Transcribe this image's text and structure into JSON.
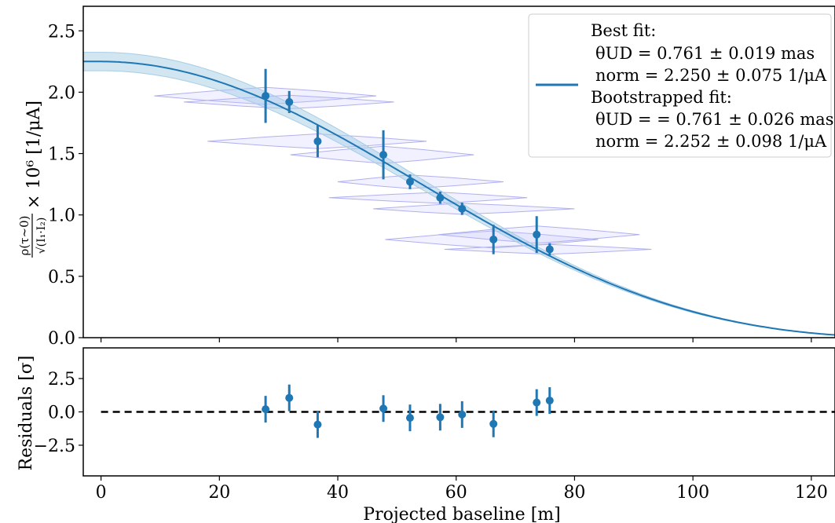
{
  "chart_data": [
    {
      "type": "scatter",
      "panel": "main",
      "title": "",
      "xlabel": "",
      "ylabel_parts": {
        "numerator": "ρ(τ∼0)",
        "denominator": "√(I₁·I₂)",
        "suffix": "× 10⁶ [1/μA]"
      },
      "xlim": [
        -3,
        124
      ],
      "ylim": [
        0,
        2.7
      ],
      "yticks": [
        "0.0",
        "0.5",
        "1.0",
        "1.5",
        "2.0",
        "2.5"
      ],
      "ytick_values": [
        0,
        0.5,
        1.0,
        1.5,
        2.0,
        2.5
      ],
      "xtick_values": [
        0,
        20,
        40,
        60,
        80,
        100,
        120
      ],
      "legend_position": "upper-right",
      "legend": {
        "best_fit_title": "Best fit:",
        "best_fit_theta": "θUD = 0.761 ± 0.019 mas",
        "best_fit_norm": "norm = 2.250 ± 0.075 1/μA",
        "boot_title": "Bootstrapped fit:",
        "boot_theta": "θUD = = 0.761 ± 0.026 mas",
        "boot_norm": "norm = 2.252 ± 0.098 1/μA"
      },
      "model": {
        "name": "Best fit",
        "norm": 2.25,
        "theta_mas": 0.761,
        "band_norm_error": 0.075,
        "color": "#1f77b4",
        "band_color": "#a6cde6"
      },
      "series": [
        {
          "name": "data",
          "color": "#1f77b4",
          "points": [
            {
              "x": 27.8,
              "y": 1.97,
              "yerr": 0.22
            },
            {
              "x": 31.8,
              "y": 1.92,
              "yerr": 0.09
            },
            {
              "x": 36.6,
              "y": 1.6,
              "yerr": 0.13
            },
            {
              "x": 47.7,
              "y": 1.49,
              "yerr": 0.2
            },
            {
              "x": 52.2,
              "y": 1.27,
              "yerr": 0.06
            },
            {
              "x": 57.3,
              "y": 1.14,
              "yerr": 0.05
            },
            {
              "x": 61.0,
              "y": 1.05,
              "yerr": 0.05
            },
            {
              "x": 66.3,
              "y": 0.8,
              "yerr": 0.12
            },
            {
              "x": 73.6,
              "y": 0.84,
              "yerr": 0.15
            },
            {
              "x": 75.8,
              "y": 0.72,
              "yerr": 0.05
            }
          ]
        }
      ],
      "violins": [
        {
          "xc": 27.8,
          "y": 1.97,
          "xmin": 9.0,
          "xmax": 46.5,
          "halfh": 0.07
        },
        {
          "xc": 31.8,
          "y": 1.92,
          "xmin": 14.0,
          "xmax": 49.5,
          "halfh": 0.055
        },
        {
          "xc": 36.6,
          "y": 1.6,
          "xmin": 18.0,
          "xmax": 55.0,
          "halfh": 0.06
        },
        {
          "xc": 47.7,
          "y": 1.49,
          "xmin": 32.0,
          "xmax": 63.0,
          "halfh": 0.07
        },
        {
          "xc": 52.2,
          "y": 1.27,
          "xmin": 40.0,
          "xmax": 68.0,
          "halfh": 0.055
        },
        {
          "xc": 57.3,
          "y": 1.14,
          "xmin": 38.5,
          "xmax": 72.0,
          "halfh": 0.045
        },
        {
          "xc": 61.0,
          "y": 1.05,
          "xmin": 46.0,
          "xmax": 80.0,
          "halfh": 0.045
        },
        {
          "xc": 66.3,
          "y": 0.8,
          "xmin": 48.0,
          "xmax": 84.0,
          "halfh": 0.07
        },
        {
          "xc": 73.6,
          "y": 0.84,
          "xmin": 57.0,
          "xmax": 91.0,
          "halfh": 0.07
        },
        {
          "xc": 75.8,
          "y": 0.72,
          "xmin": 58.0,
          "xmax": 93.0,
          "halfh": 0.04
        }
      ]
    },
    {
      "type": "scatter",
      "panel": "residuals",
      "xlabel": "Projected baseline [m]",
      "ylabel": "Residuals [σ]",
      "xlim": [
        -3,
        124
      ],
      "ylim": [
        -4.8,
        4.8
      ],
      "xticks": [
        "0",
        "20",
        "40",
        "60",
        "80",
        "100",
        "120"
      ],
      "xtick_values": [
        0,
        20,
        40,
        60,
        80,
        100,
        120
      ],
      "yticks": [
        "−2.5",
        "0.0",
        "2.5"
      ],
      "ytick_values": [
        -2.5,
        0,
        2.5
      ],
      "reference_line": 0,
      "series": [
        {
          "name": "residuals",
          "color": "#1f77b4",
          "points": [
            {
              "x": 27.8,
              "y": 0.2,
              "yerr": 1.0
            },
            {
              "x": 31.8,
              "y": 1.05,
              "yerr": 1.0
            },
            {
              "x": 36.6,
              "y": -0.95,
              "yerr": 1.0
            },
            {
              "x": 47.7,
              "y": 0.25,
              "yerr": 1.0
            },
            {
              "x": 52.2,
              "y": -0.45,
              "yerr": 1.0
            },
            {
              "x": 57.3,
              "y": -0.4,
              "yerr": 1.0
            },
            {
              "x": 61.0,
              "y": -0.2,
              "yerr": 1.0
            },
            {
              "x": 66.3,
              "y": -0.9,
              "yerr": 1.0
            },
            {
              "x": 73.6,
              "y": 0.7,
              "yerr": 1.0
            },
            {
              "x": 75.8,
              "y": 0.85,
              "yerr": 1.0
            }
          ]
        }
      ]
    }
  ]
}
